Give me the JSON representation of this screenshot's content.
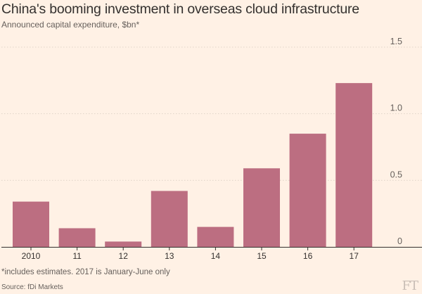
{
  "chart_data": {
    "type": "bar",
    "title": "China's booming investment in overseas cloud infrastructure",
    "subtitle": "Announced capital expenditure, $bn*",
    "categories": [
      "2010",
      "11",
      "12",
      "13",
      "14",
      "15",
      "16",
      "17"
    ],
    "values": [
      0.34,
      0.14,
      0.04,
      0.42,
      0.15,
      0.59,
      0.85,
      1.23
    ],
    "ylim": [
      0,
      1.5
    ],
    "yticks": [
      0,
      0.5,
      1.0,
      1.5
    ],
    "ytick_labels": [
      "0",
      "0.5",
      "1.0",
      "1.5"
    ],
    "ytick_position": "right",
    "grid": true,
    "bar_color": "#bc6e81",
    "background": "#fff1e5"
  },
  "footnote": "*includes estimates. 2017 is January-June only",
  "source": "Source: fDi Markets",
  "logo_text": "FT"
}
